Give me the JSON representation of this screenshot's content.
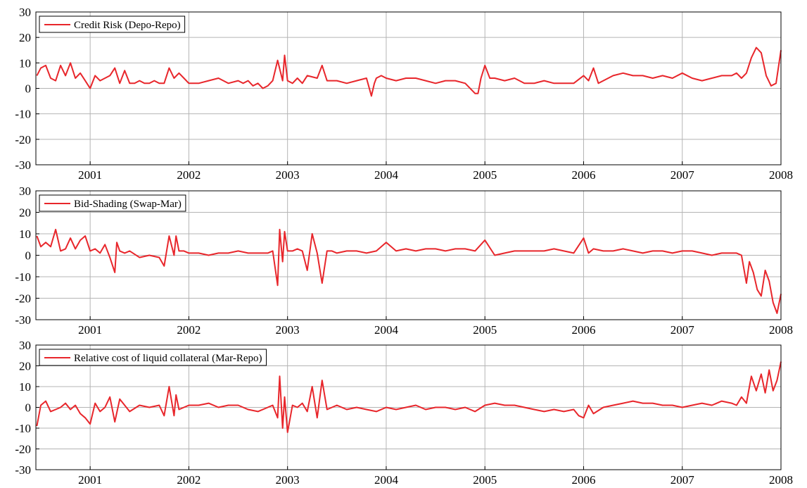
{
  "chart_data": [
    {
      "type": "line",
      "xlim": [
        2000.45,
        2008.0
      ],
      "ylim": [
        -30,
        30
      ],
      "yticks": [
        30,
        20,
        10,
        0,
        -10,
        -20,
        -30
      ],
      "xticks": [
        2001,
        2002,
        2003,
        2004,
        2005,
        2006,
        2007,
        2008
      ],
      "grid": true,
      "legend_position": "top-left",
      "series": [
        {
          "name": "Credit Risk (Depo-Repo)",
          "color": "#e8262b",
          "x": [
            2000.46,
            2000.5,
            2000.55,
            2000.6,
            2000.65,
            2000.7,
            2000.75,
            2000.8,
            2000.85,
            2000.9,
            2000.95,
            2001.0,
            2001.05,
            2001.1,
            2001.15,
            2001.2,
            2001.25,
            2001.3,
            2001.35,
            2001.4,
            2001.45,
            2001.5,
            2001.55,
            2001.6,
            2001.65,
            2001.7,
            2001.75,
            2001.8,
            2001.85,
            2001.9,
            2001.95,
            2002.0,
            2002.1,
            2002.2,
            2002.3,
            2002.4,
            2002.5,
            2002.55,
            2002.6,
            2002.65,
            2002.7,
            2002.75,
            2002.8,
            2002.85,
            2002.9,
            2002.95,
            2002.97,
            2003.0,
            2003.05,
            2003.1,
            2003.15,
            2003.2,
            2003.3,
            2003.35,
            2003.4,
            2003.5,
            2003.6,
            2003.7,
            2003.8,
            2003.85,
            2003.88,
            2003.9,
            2003.95,
            2004.0,
            2004.1,
            2004.2,
            2004.3,
            2004.4,
            2004.5,
            2004.6,
            2004.7,
            2004.8,
            2004.9,
            2004.93,
            2004.96,
            2005.0,
            2005.05,
            2005.1,
            2005.2,
            2005.3,
            2005.4,
            2005.5,
            2005.6,
            2005.7,
            2005.8,
            2005.9,
            2006.0,
            2006.05,
            2006.1,
            2006.15,
            2006.2,
            2006.3,
            2006.4,
            2006.5,
            2006.6,
            2006.7,
            2006.8,
            2006.9,
            2007.0,
            2007.1,
            2007.2,
            2007.3,
            2007.4,
            2007.5,
            2007.55,
            2007.6,
            2007.65,
            2007.7,
            2007.75,
            2007.8,
            2007.85,
            2007.9,
            2007.95,
            2008.0
          ],
          "values": [
            5,
            8,
            9,
            4,
            3,
            9,
            5,
            10,
            4,
            6,
            3,
            0,
            5,
            3,
            4,
            5,
            8,
            2,
            7,
            2,
            2,
            3,
            2,
            2,
            3,
            2,
            2,
            8,
            4,
            6,
            4,
            2,
            2,
            3,
            4,
            2,
            3,
            2,
            3,
            1,
            2,
            0,
            1,
            3,
            11,
            3,
            13,
            3,
            2,
            4,
            2,
            5,
            4,
            9,
            3,
            3,
            2,
            3,
            4,
            -3,
            2,
            4,
            5,
            4,
            3,
            4,
            4,
            3,
            2,
            3,
            3,
            2,
            -2,
            -2,
            4,
            9,
            4,
            4,
            3,
            4,
            2,
            2,
            3,
            2,
            2,
            2,
            5,
            3,
            8,
            2,
            3,
            5,
            6,
            5,
            5,
            4,
            5,
            4,
            6,
            4,
            3,
            4,
            5,
            5,
            6,
            4,
            6,
            12,
            16,
            14,
            5,
            1,
            2,
            15
          ]
        }
      ]
    },
    {
      "type": "line",
      "xlim": [
        2000.45,
        2008.0
      ],
      "ylim": [
        -30,
        30
      ],
      "yticks": [
        30,
        20,
        10,
        0,
        -10,
        -20,
        -30
      ],
      "xticks": [
        2001,
        2002,
        2003,
        2004,
        2005,
        2006,
        2007,
        2008
      ],
      "grid": true,
      "legend_position": "top-left",
      "series": [
        {
          "name": "Bid-Shading (Swap-Mar)",
          "color": "#e8262b",
          "x": [
            2000.46,
            2000.5,
            2000.55,
            2000.6,
            2000.65,
            2000.7,
            2000.75,
            2000.8,
            2000.85,
            2000.9,
            2000.95,
            2001.0,
            2001.05,
            2001.1,
            2001.15,
            2001.2,
            2001.25,
            2001.27,
            2001.3,
            2001.35,
            2001.4,
            2001.5,
            2001.6,
            2001.7,
            2001.75,
            2001.8,
            2001.85,
            2001.87,
            2001.9,
            2001.95,
            2002.0,
            2002.1,
            2002.2,
            2002.3,
            2002.4,
            2002.5,
            2002.6,
            2002.7,
            2002.8,
            2002.85,
            2002.9,
            2002.92,
            2002.95,
            2002.97,
            2003.0,
            2003.05,
            2003.1,
            2003.15,
            2003.2,
            2003.25,
            2003.3,
            2003.35,
            2003.4,
            2003.45,
            2003.5,
            2003.6,
            2003.7,
            2003.8,
            2003.9,
            2004.0,
            2004.1,
            2004.2,
            2004.3,
            2004.4,
            2004.5,
            2004.6,
            2004.7,
            2004.8,
            2004.9,
            2005.0,
            2005.1,
            2005.2,
            2005.3,
            2005.4,
            2005.5,
            2005.6,
            2005.7,
            2005.8,
            2005.9,
            2006.0,
            2006.05,
            2006.1,
            2006.2,
            2006.3,
            2006.4,
            2006.5,
            2006.6,
            2006.7,
            2006.8,
            2006.9,
            2007.0,
            2007.1,
            2007.2,
            2007.3,
            2007.4,
            2007.5,
            2007.55,
            2007.6,
            2007.65,
            2007.68,
            2007.72,
            2007.76,
            2007.8,
            2007.84,
            2007.88,
            2007.92,
            2007.96,
            2008.0
          ],
          "values": [
            9,
            4,
            6,
            4,
            12,
            2,
            3,
            8,
            3,
            7,
            9,
            2,
            3,
            1,
            5,
            -1,
            -8,
            6,
            2,
            1,
            2,
            -1,
            0,
            -1,
            -5,
            9,
            0,
            9,
            2,
            2,
            1,
            1,
            0,
            1,
            1,
            2,
            1,
            1,
            1,
            2,
            -14,
            12,
            -3,
            11,
            2,
            2,
            3,
            2,
            -7,
            10,
            1,
            -13,
            2,
            2,
            1,
            2,
            2,
            1,
            2,
            6,
            2,
            3,
            2,
            3,
            3,
            2,
            3,
            3,
            2,
            7,
            0,
            1,
            2,
            2,
            2,
            2,
            3,
            2,
            1,
            8,
            1,
            3,
            2,
            2,
            3,
            2,
            1,
            2,
            2,
            1,
            2,
            2,
            1,
            0,
            1,
            1,
            1,
            0,
            -13,
            -3,
            -8,
            -16,
            -19,
            -7,
            -12,
            -22,
            -27,
            -18
          ]
        }
      ]
    },
    {
      "type": "line",
      "xlim": [
        2000.45,
        2008.0
      ],
      "ylim": [
        -30,
        30
      ],
      "yticks": [
        30,
        20,
        10,
        0,
        -10,
        -20,
        -30
      ],
      "xticks": [
        2001,
        2002,
        2003,
        2004,
        2005,
        2006,
        2007,
        2008
      ],
      "grid": true,
      "legend_position": "top-left",
      "series": [
        {
          "name": "Relative cost of liquid collateral (Mar-Repo)",
          "color": "#e8262b",
          "x": [
            2000.46,
            2000.5,
            2000.55,
            2000.6,
            2000.65,
            2000.7,
            2000.75,
            2000.8,
            2000.85,
            2000.9,
            2000.95,
            2001.0,
            2001.05,
            2001.1,
            2001.15,
            2001.2,
            2001.25,
            2001.3,
            2001.4,
            2001.5,
            2001.6,
            2001.7,
            2001.75,
            2001.8,
            2001.85,
            2001.87,
            2001.9,
            2001.95,
            2002.0,
            2002.1,
            2002.2,
            2002.3,
            2002.4,
            2002.5,
            2002.6,
            2002.7,
            2002.8,
            2002.85,
            2002.9,
            2002.92,
            2002.95,
            2002.97,
            2003.0,
            2003.05,
            2003.1,
            2003.15,
            2003.2,
            2003.25,
            2003.3,
            2003.35,
            2003.4,
            2003.45,
            2003.5,
            2003.6,
            2003.7,
            2003.8,
            2003.9,
            2004.0,
            2004.1,
            2004.2,
            2004.3,
            2004.4,
            2004.5,
            2004.6,
            2004.7,
            2004.8,
            2004.9,
            2005.0,
            2005.1,
            2005.2,
            2005.3,
            2005.4,
            2005.5,
            2005.6,
            2005.7,
            2005.8,
            2005.9,
            2005.95,
            2006.0,
            2006.05,
            2006.1,
            2006.2,
            2006.3,
            2006.4,
            2006.5,
            2006.6,
            2006.7,
            2006.8,
            2006.9,
            2007.0,
            2007.1,
            2007.2,
            2007.3,
            2007.4,
            2007.5,
            2007.55,
            2007.6,
            2007.65,
            2007.7,
            2007.75,
            2007.8,
            2007.84,
            2007.88,
            2007.92,
            2007.96,
            2008.0
          ],
          "values": [
            -9,
            1,
            3,
            -2,
            -1,
            0,
            2,
            -1,
            1,
            -3,
            -5,
            -8,
            2,
            -2,
            0,
            5,
            -7,
            4,
            -2,
            1,
            0,
            1,
            -4,
            10,
            -4,
            6,
            -1,
            0,
            1,
            1,
            2,
            0,
            1,
            1,
            -1,
            -2,
            0,
            1,
            -5,
            15,
            -10,
            5,
            -12,
            1,
            0,
            2,
            -2,
            10,
            -5,
            13,
            -1,
            0,
            1,
            -1,
            0,
            -1,
            -2,
            0,
            -1,
            0,
            1,
            -1,
            0,
            0,
            -1,
            0,
            -2,
            1,
            2,
            1,
            1,
            0,
            -1,
            -2,
            -1,
            -2,
            -1,
            -4,
            -5,
            1,
            -3,
            0,
            1,
            2,
            3,
            2,
            2,
            1,
            1,
            0,
            1,
            2,
            1,
            3,
            2,
            1,
            5,
            2,
            15,
            8,
            16,
            7,
            18,
            8,
            13,
            22
          ]
        }
      ]
    }
  ]
}
